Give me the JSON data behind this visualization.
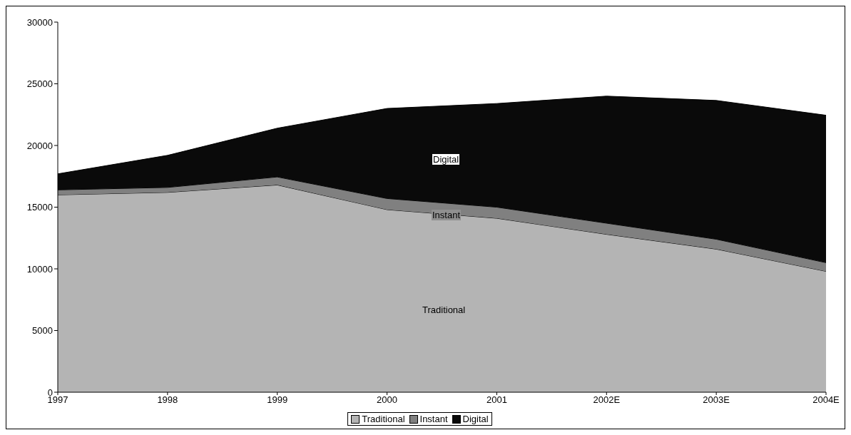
{
  "chart_data": {
    "type": "area",
    "stacked": true,
    "categories": [
      "1997",
      "1998",
      "1999",
      "2000",
      "2001",
      "2002E",
      "2003E",
      "2004E"
    ],
    "series": [
      {
        "name": "Traditional",
        "color": "#b4b4b4",
        "values": [
          16000,
          16200,
          16800,
          14800,
          14100,
          12800,
          11600,
          9800
        ]
      },
      {
        "name": "Instant",
        "color": "#808080",
        "values": [
          400,
          400,
          650,
          900,
          900,
          900,
          800,
          700
        ]
      },
      {
        "name": "Digital",
        "color": "#0a0a0a",
        "values": [
          1300,
          2600,
          3950,
          7300,
          8400,
          10300,
          11250,
          11950
        ]
      }
    ],
    "ylim": [
      0,
      30000
    ],
    "yticks": [
      0,
      5000,
      10000,
      15000,
      20000,
      25000,
      30000
    ],
    "grid": false,
    "legend": "bottom",
    "annotations": [
      "Traditional",
      "Instant",
      "Digital"
    ]
  }
}
